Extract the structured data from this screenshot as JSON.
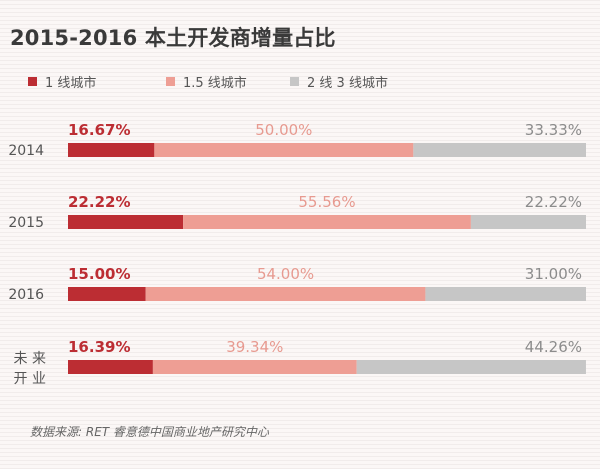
{
  "chart_data": {
    "type": "bar",
    "stacked": true,
    "orientation": "horizontal",
    "title": "2015-2016 本土开发商增量占比",
    "categories": [
      "2014",
      "2015",
      "2016",
      "未来开业"
    ],
    "category_lines": [
      [
        "2014"
      ],
      [
        "2015"
      ],
      [
        "2016"
      ],
      [
        "未 来",
        "开 业"
      ]
    ],
    "series": [
      {
        "name": "1 线城市",
        "values": [
          16.67,
          22.22,
          15.0,
          16.39
        ],
        "labels": [
          "16.67%",
          "22.22%",
          "15.00%",
          "16.39%"
        ],
        "color": "#bc2d33",
        "label_color": "#bc2d33"
      },
      {
        "name": "1.5 线城市",
        "values": [
          50.0,
          55.56,
          54.0,
          39.34
        ],
        "labels": [
          "50.00%",
          "55.56%",
          "54.00%",
          "39.34%"
        ],
        "color": "#ee9e94",
        "label_color": "#e79a90"
      },
      {
        "name": "2 线 3 线城市",
        "values": [
          33.33,
          22.22,
          31.0,
          44.26
        ],
        "labels": [
          "33.33%",
          "22.22%",
          "31.00%",
          "44.26%"
        ],
        "color": "#c6c6c6",
        "label_color": "#8c8c8c"
      }
    ],
    "xlim": [
      0,
      100
    ],
    "grid": false,
    "legend_position": "top-left"
  },
  "source": "数据来源: RET 睿意德中国商业地产研究中心"
}
